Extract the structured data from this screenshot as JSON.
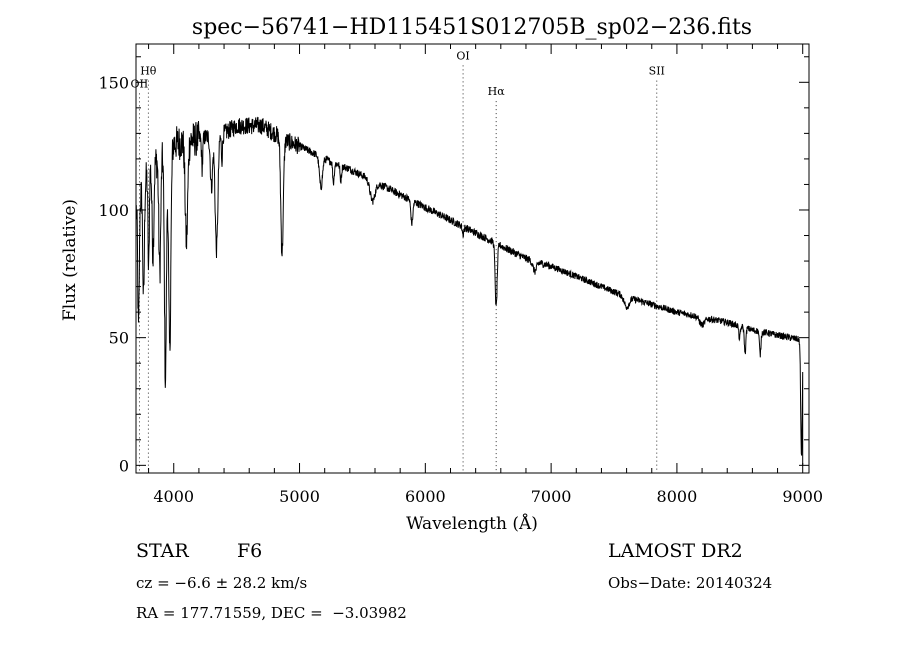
{
  "info": {
    "class_label": "STAR",
    "subclass": "F6",
    "survey": "LAMOST DR2",
    "cz": "cz = −6.6 ± 28.2 km/s",
    "obs_date": "Obs−Date: 20140324",
    "coords": "RA = 177.71559, DEC =  −3.03982"
  },
  "chart_data": {
    "type": "line",
    "title": "spec−56741−HD115451S012705B_sp02−236.fits",
    "xlabel": "Wavelength (Å)",
    "ylabel": "Flux (relative)",
    "xlim": [
      3700,
      9050
    ],
    "ylim": [
      -3,
      165
    ],
    "x_ticks": [
      4000,
      5000,
      6000,
      7000,
      8000,
      9000
    ],
    "x_tick_labels": [
      "4000",
      "5000",
      "6000",
      "7000",
      "8000",
      "9000"
    ],
    "y_ticks": [
      0,
      50,
      100,
      150
    ],
    "y_tick_labels": [
      "0",
      "50",
      "100",
      "150"
    ],
    "line_color": "#000000",
    "continuum": {
      "x": [
        3700,
        3800,
        3900,
        4000,
        4200,
        4400,
        4500,
        4700,
        4800,
        4900,
        5000,
        5200,
        5400,
        5600,
        5800,
        6000,
        6200,
        6400,
        6600,
        6800,
        7000,
        7200,
        7400,
        7600,
        7800,
        8000,
        8200,
        8400,
        8600,
        8800,
        9000
      ],
      "y": [
        100,
        115,
        122,
        126,
        128,
        130,
        133,
        133,
        130,
        127,
        125,
        120,
        116,
        111,
        106,
        101,
        96,
        91,
        86,
        81,
        78,
        74,
        70,
        66,
        63,
        60,
        58,
        56,
        53,
        51,
        49
      ]
    },
    "absorption_lines": [
      {
        "x": 3720,
        "depth": 50,
        "width": 6
      },
      {
        "x": 3760,
        "depth": 45,
        "width": 6
      },
      {
        "x": 3800,
        "depth": 40,
        "width": 5
      },
      {
        "x": 3835,
        "depth": 35,
        "width": 7
      },
      {
        "x": 3889,
        "depth": 45,
        "width": 8
      },
      {
        "x": 3934,
        "depth": 90,
        "width": 8
      },
      {
        "x": 3968,
        "depth": 80,
        "width": 9
      },
      {
        "x": 4101,
        "depth": 40,
        "width": 10
      },
      {
        "x": 4226,
        "depth": 12,
        "width": 5
      },
      {
        "x": 4300,
        "depth": 20,
        "width": 9
      },
      {
        "x": 4340,
        "depth": 45,
        "width": 11
      },
      {
        "x": 4383,
        "depth": 10,
        "width": 5
      },
      {
        "x": 4861,
        "depth": 45,
        "width": 10
      },
      {
        "x": 5170,
        "depth": 12,
        "width": 12
      },
      {
        "x": 5270,
        "depth": 8,
        "width": 6
      },
      {
        "x": 5328,
        "depth": 6,
        "width": 6
      },
      {
        "x": 5580,
        "depth": 8,
        "width": 20
      },
      {
        "x": 5893,
        "depth": 9,
        "width": 8
      },
      {
        "x": 6300,
        "depth": 3,
        "width": 6
      },
      {
        "x": 6563,
        "depth": 25,
        "width": 8
      },
      {
        "x": 6870,
        "depth": 4,
        "width": 15
      },
      {
        "x": 7600,
        "depth": 4,
        "width": 20
      },
      {
        "x": 8200,
        "depth": 3,
        "width": 20
      },
      {
        "x": 8498,
        "depth": 5,
        "width": 6
      },
      {
        "x": 8542,
        "depth": 10,
        "width": 6
      },
      {
        "x": 8662,
        "depth": 9,
        "width": 6
      },
      {
        "x": 8990,
        "depth": 45,
        "width": 6
      }
    ],
    "marked_lines": [
      {
        "label": "OII",
        "x": 3727,
        "label_y": 148
      },
      {
        "label": "Hθ",
        "x": 3798,
        "label_y": 153
      },
      {
        "label": "OI",
        "x": 6300,
        "label_y": 159
      },
      {
        "label": "Hα",
        "x": 6563,
        "label_y": 145
      },
      {
        "label": "SII",
        "x": 7840,
        "label_y": 153
      }
    ]
  }
}
